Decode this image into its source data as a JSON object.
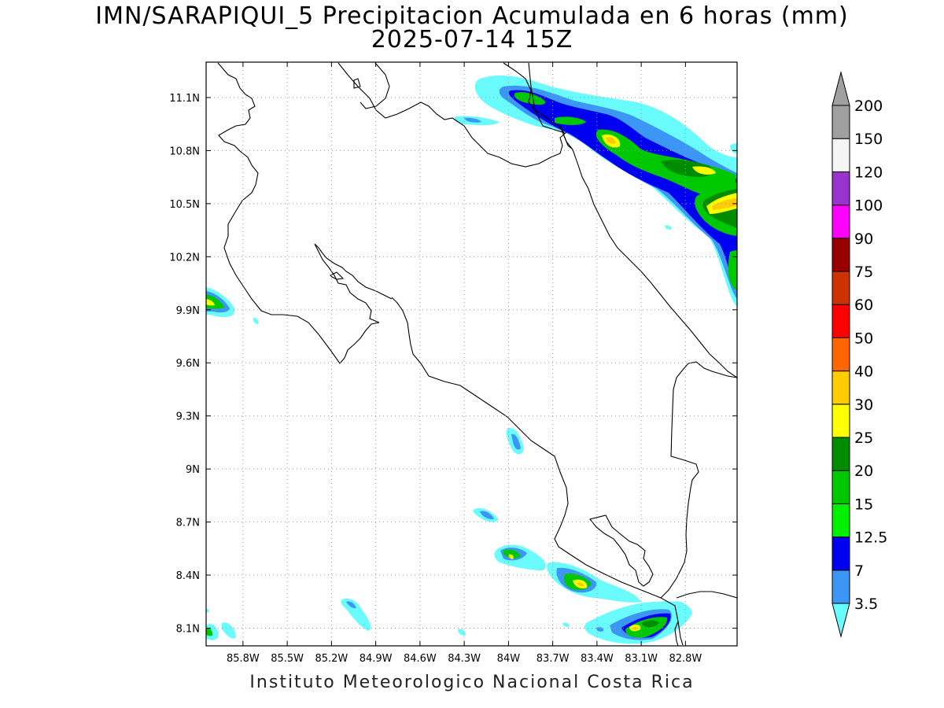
{
  "title": {
    "line1": "IMN/SARAPIQUI_5 Precipitacion Acumulada en 6 horas (mm)",
    "line2": "2025-07-14 15Z"
  },
  "footer": "Instituto Meteorologico Nacional Costa Rica",
  "map": {
    "lon_range": [
      -86.05,
      -82.45
    ],
    "lat_range": [
      8.0,
      11.3
    ],
    "lon_ticks": [
      "85.8W",
      "85.5W",
      "85.2W",
      "84.9W",
      "84.6W",
      "84.3W",
      "84W",
      "83.7W",
      "83.4W",
      "83.1W",
      "82.8W"
    ],
    "lat_ticks": [
      "11.1N",
      "10.8N",
      "10.5N",
      "10.2N",
      "9.9N",
      "9.6N",
      "9.3N",
      "9N",
      "8.7N",
      "8.4N",
      "8.1N"
    ],
    "grid": "dotted"
  },
  "colorbar": {
    "levels": [
      "3.5",
      "7",
      "12.5",
      "15",
      "20",
      "25",
      "30",
      "40",
      "50",
      "60",
      "75",
      "90",
      "100",
      "120",
      "150",
      "200"
    ],
    "colors": [
      "#6afcfc",
      "#3c96f5",
      "#0000f0",
      "#00f000",
      "#00c800",
      "#008c00",
      "#ffff00",
      "#ffcc00",
      "#ff6600",
      "#ff0000",
      "#cc3300",
      "#990000",
      "#ff00ff",
      "#9933cc",
      "#f5f5f5",
      "#a0a0a0"
    ]
  }
}
